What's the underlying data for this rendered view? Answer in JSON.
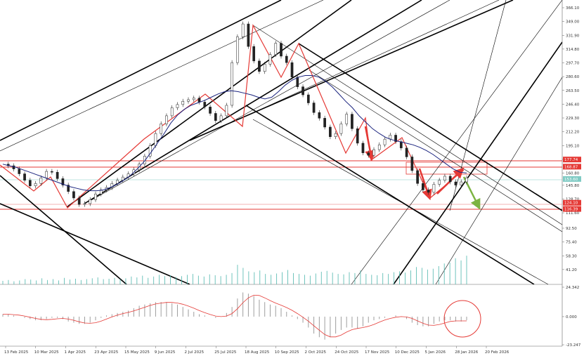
{
  "chart_data": {
    "type": "candlestick",
    "price_axis_labels": [
      "366.10",
      "349.00",
      "331.90",
      "314.80",
      "297.70",
      "280.60",
      "263.50",
      "246.40",
      "229.30",
      "212.20",
      "195.10",
      "177.90",
      "160.80",
      "145.80",
      "128.70",
      "111.60",
      "92.50",
      "75.40",
      "58.30",
      "41.20"
    ],
    "price_tags": [
      {
        "label": "177.74",
        "color": "#e53935"
      },
      {
        "label": "168.87",
        "color": "#e53935"
      },
      {
        "label": "153.60",
        "color": "#80cbc4"
      },
      {
        "label": "124.10",
        "color": "#e53935"
      },
      {
        "label": "116.39",
        "color": "#e53935"
      }
    ],
    "oscillator_labels": [
      "24.342",
      "0.000",
      "-23.247"
    ],
    "date_labels": [
      "13 Feb 2025",
      "10 Mar 2025",
      "1 Apr 2025",
      "23 Apr 2025",
      "15 May 2025",
      "9 Jun 2025",
      "2 Jul 2025",
      "25 Jul 2025",
      "18 Aug 2025",
      "10 Sep 2025",
      "2 Oct 2025",
      "24 Oct 2025",
      "17 Nov 2025",
      "10 Dec 2025",
      "5 Jan 2026",
      "28 Jan 2026",
      "20 Feb 2026"
    ],
    "price_series": [
      172,
      170,
      166,
      160,
      152,
      145,
      148,
      155,
      163,
      162,
      154,
      146,
      138,
      130,
      122,
      123,
      128,
      135,
      140,
      143,
      148,
      152,
      156,
      160,
      165,
      172,
      182,
      195,
      210,
      222,
      232,
      242,
      246,
      250,
      252,
      254,
      249,
      243,
      235,
      226,
      232,
      245,
      298,
      330,
      346,
      318,
      300,
      287,
      296,
      308,
      322,
      306,
      298,
      280,
      268,
      258,
      248,
      236,
      229,
      218,
      206,
      210,
      222,
      234,
      216,
      198,
      186,
      183,
      190,
      196,
      203,
      208,
      200,
      192,
      181,
      164,
      148,
      140,
      137,
      147,
      152,
      157,
      150,
      146,
      150,
      155
    ],
    "moving_average": [
      172,
      170,
      168,
      165,
      162,
      159,
      156,
      153,
      150,
      147,
      144,
      142,
      140,
      139,
      139,
      140,
      143,
      147,
      152,
      158,
      166,
      175,
      186,
      198,
      210,
      223,
      233,
      240,
      245,
      248,
      251,
      255,
      259,
      262,
      263,
      262,
      260,
      258,
      255,
      253,
      255,
      262,
      270,
      276,
      280,
      282,
      282,
      280,
      275,
      268,
      259,
      250,
      242,
      232,
      224,
      216,
      210,
      205,
      202,
      200,
      198,
      196,
      193,
      189,
      184,
      178,
      172,
      166,
      162,
      161
    ],
    "volume_series": [
      8,
      10,
      7,
      9,
      12,
      11,
      9,
      14,
      10,
      12,
      9,
      15,
      11,
      13,
      10,
      12,
      14,
      16,
      12,
      13,
      15,
      12,
      14,
      18,
      16,
      20,
      15,
      18,
      22,
      19,
      21,
      17,
      19,
      22,
      24,
      20,
      18,
      23,
      21,
      19,
      22,
      26,
      45,
      38,
      30,
      28,
      32,
      24,
      22,
      25,
      28,
      33,
      26,
      24,
      22,
      20,
      25,
      29,
      31,
      27,
      24,
      23,
      28,
      26,
      32,
      24,
      22,
      21,
      26,
      24,
      28,
      30,
      27,
      32,
      40,
      38,
      34,
      36,
      42,
      48,
      50,
      60,
      55,
      66
    ],
    "oscillator_histogram": [
      2,
      2,
      1,
      0,
      -1,
      -2,
      -3,
      -3,
      -2,
      -1,
      -1,
      -2,
      -4,
      -5,
      -6,
      -6,
      -5,
      -3,
      -1,
      1,
      2,
      3,
      4,
      5,
      7,
      9,
      10,
      11,
      12,
      12,
      12,
      11,
      10,
      8,
      6,
      4,
      2,
      1,
      0,
      -1,
      0,
      3,
      8,
      15,
      20,
      19,
      17,
      14,
      12,
      10,
      9,
      7,
      4,
      1,
      -2,
      -5,
      -9,
      -14,
      -17,
      -19,
      -17,
      -14,
      -11,
      -9,
      -9,
      -10,
      -8,
      -5,
      -3,
      -2,
      -1,
      0,
      1,
      0,
      -2,
      -5,
      -7,
      -8,
      -8,
      -6,
      -4,
      -3,
      -3,
      -4,
      -4,
      -3
    ],
    "oscillator_ylim": [
      -23.247,
      24.342
    ]
  }
}
